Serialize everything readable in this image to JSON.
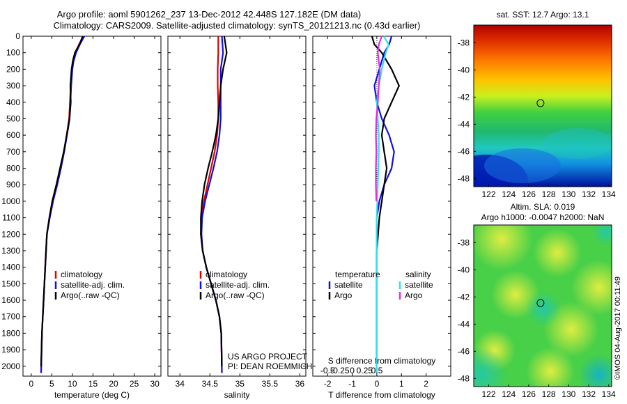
{
  "header": {
    "line1": "Argo profile: aoml 5901262_237 13-Dec-2012 42.448S 127.182E (DM data)",
    "line2": "Climatology: CARS2009. Satellite-adjusted climatology: synTS_20121213.nc (0.43d earlier)"
  },
  "footer": {
    "project": "US ARGO PROJECT",
    "pi": "PI: DEAN ROEMMICH",
    "credit": "©IMOS 04-Aug-2017 00:11:49"
  },
  "colors": {
    "climatology": "#e00000",
    "satellite": "#1010e0",
    "argo": "#000000",
    "satellite_salinity": "#30e0f0",
    "argo_salinity": "#e030e0"
  },
  "chart_data": [
    {
      "type": "line",
      "id": "temperature",
      "xlabel": "temperature (deg C)",
      "xlim": [
        -2,
        31.5
      ],
      "ylim": [
        2060,
        0
      ],
      "xticks": [
        0,
        5,
        10,
        15,
        20,
        25,
        30
      ],
      "yticks": [
        0,
        100,
        200,
        300,
        400,
        500,
        600,
        700,
        800,
        900,
        1000,
        1100,
        1200,
        1300,
        1400,
        1500,
        1600,
        1700,
        1800,
        1900,
        2000
      ],
      "legend": [
        "climatology",
        "satellite-adj. clim.",
        "Argo(..raw -QC)"
      ],
      "series": [
        {
          "name": "climatology",
          "color": "#e00000",
          "x": [
            12.8,
            11.6,
            10.8,
            10.2,
            9.9,
            9.6,
            9.4,
            9.2,
            8.9,
            8.6,
            8.0,
            7.2,
            6.3,
            5.3,
            4.5,
            3.8,
            3.4,
            3.0,
            2.6,
            2.4
          ],
          "y": [
            0,
            50,
            100,
            150,
            200,
            300,
            400,
            500,
            550,
            600,
            700,
            800,
            900,
            1000,
            1100,
            1200,
            1400,
            1600,
            1800,
            2040
          ]
        },
        {
          "name": "satellite-adj. clim.",
          "color": "#1010e0",
          "x": [
            12.9,
            11.8,
            10.9,
            10.3,
            10.0,
            9.7,
            9.5,
            9.3,
            9.0,
            8.7,
            8.0,
            7.2,
            6.3,
            5.3,
            4.5,
            3.8,
            3.4,
            3.0,
            2.6,
            2.4
          ],
          "y": [
            0,
            50,
            100,
            150,
            200,
            300,
            400,
            500,
            550,
            600,
            700,
            800,
            900,
            1000,
            1100,
            1200,
            1400,
            1600,
            1800,
            2040
          ]
        },
        {
          "name": "Argo(..raw -QC)",
          "color": "#000000",
          "x": [
            12.5,
            11.7,
            10.6,
            10.1,
            9.8,
            9.5,
            9.6,
            9.3,
            9.0,
            8.6,
            7.9,
            7.0,
            6.1,
            5.1,
            4.4,
            3.8,
            3.4,
            3.0,
            2.6,
            2.4
          ],
          "y": [
            0,
            50,
            100,
            150,
            200,
            300,
            400,
            500,
            550,
            600,
            700,
            800,
            900,
            1000,
            1100,
            1200,
            1400,
            1600,
            1800,
            2000
          ]
        }
      ]
    },
    {
      "type": "line",
      "id": "salinity",
      "xlabel": "salinity",
      "xlim": [
        33.8,
        36.1
      ],
      "ylim": [
        2060,
        0
      ],
      "xticks": [
        34,
        34.5,
        35,
        35.5,
        36
      ],
      "legend": [
        "climatology",
        "satellite-adj. clim.",
        "Argo(..raw -QC)"
      ],
      "series": [
        {
          "name": "climatology",
          "color": "#e00000",
          "x": [
            34.64,
            34.64,
            34.63,
            34.63,
            34.64,
            34.64,
            34.62,
            34.58,
            34.52,
            34.46,
            34.4,
            34.36,
            34.35,
            34.38,
            34.44,
            34.52,
            34.6,
            34.66,
            34.69,
            34.7
          ],
          "y": [
            0,
            100,
            200,
            300,
            400,
            500,
            600,
            700,
            800,
            900,
            1000,
            1100,
            1200,
            1300,
            1400,
            1500,
            1600,
            1700,
            1800,
            2040
          ]
        },
        {
          "name": "satellite-adj. clim.",
          "color": "#1010e0",
          "x": [
            34.7,
            34.72,
            34.68,
            34.68,
            34.68,
            34.68,
            34.66,
            34.62,
            34.56,
            34.49,
            34.42,
            34.37,
            34.36,
            34.38,
            34.44,
            34.52,
            34.6,
            34.66,
            34.69,
            34.7
          ],
          "y": [
            0,
            100,
            200,
            300,
            400,
            500,
            600,
            700,
            800,
            900,
            1000,
            1100,
            1200,
            1300,
            1400,
            1500,
            1600,
            1700,
            1800,
            2040
          ]
        },
        {
          "name": "Argo(..raw -QC)",
          "color": "#000000",
          "x": [
            34.74,
            34.78,
            34.72,
            34.68,
            34.66,
            34.64,
            34.6,
            34.54,
            34.47,
            34.41,
            34.37,
            34.35,
            34.35,
            34.38,
            34.44,
            34.52,
            34.6,
            34.66,
            34.69,
            34.7
          ],
          "y": [
            0,
            100,
            200,
            300,
            400,
            500,
            600,
            700,
            800,
            900,
            1000,
            1100,
            1200,
            1300,
            1400,
            1500,
            1600,
            1700,
            1800,
            2000
          ]
        }
      ]
    },
    {
      "type": "line",
      "id": "difference",
      "xlabel": "T difference from climatology",
      "xlabel_top": "S difference from climatology",
      "xlim": [
        -2.6,
        3.0
      ],
      "ylim": [
        2060,
        0
      ],
      "xticks_T": [
        -2,
        -1,
        0,
        1,
        2
      ],
      "xticks_S": [
        -0.5,
        -0.25,
        0,
        0.25,
        0.5
      ],
      "legend_temperature_title": "temperature",
      "legend_salinity_title": "salinity",
      "legend": [
        "satellite",
        "Argo",
        "satellite",
        "Argo"
      ],
      "series": [
        {
          "name": "satellite",
          "group": "temperature",
          "color": "#1010e0",
          "x": [
            0.6,
            0.5,
            0.3,
            0.1,
            -0.1,
            0.0,
            0.2,
            0.5,
            0.7,
            0.6,
            0.3,
            0.1,
            0.0,
            0.0,
            0.0,
            0.0
          ],
          "y": [
            0,
            50,
            100,
            200,
            300,
            400,
            500,
            600,
            700,
            800,
            900,
            1000,
            1100,
            1300,
            1600,
            2040
          ]
        },
        {
          "name": "Argo",
          "group": "temperature",
          "color": "#000000",
          "x": [
            -0.2,
            -0.1,
            0.2,
            0.6,
            0.9,
            0.6,
            0.3,
            0.2,
            0.3,
            0.4,
            0.3,
            0.2,
            0.1,
            0.0,
            0.0,
            0.0
          ],
          "y": [
            0,
            50,
            100,
            200,
            300,
            400,
            500,
            600,
            700,
            800,
            900,
            1000,
            1100,
            1300,
            1600,
            2040
          ]
        },
        {
          "name": "satellite",
          "group": "salinity",
          "color": "#30e0f0",
          "x": [
            0.14,
            0.24,
            0.18,
            0.1,
            0.04,
            0.0,
            0.02,
            0.04,
            0.04,
            0.03,
            0.02,
            0.01,
            0.0,
            0.0,
            0.0,
            0.0
          ],
          "y": [
            0,
            50,
            100,
            200,
            300,
            400,
            500,
            600,
            700,
            800,
            900,
            1000,
            1100,
            1300,
            1600,
            2040
          ]
        },
        {
          "name": "Argo",
          "group": "salinity",
          "color": "#e030e0",
          "x": [
            0.1,
            0.04,
            0.02,
            0.06,
            0.04,
            0.02,
            -0.01,
            -0.02,
            -0.01,
            -0.02,
            -0.02,
            -0.01
          ],
          "y": [
            0,
            50,
            100,
            200,
            300,
            400,
            500,
            600,
            700,
            800,
            900,
            1000
          ]
        }
      ]
    },
    {
      "type": "heatmap",
      "id": "sst_map",
      "title": "sat. SST: 12.7 Argo: 13.1",
      "xlim": [
        120.5,
        134.3
      ],
      "ylim": [
        -48.6,
        -36.7
      ],
      "xticks": [
        122,
        124,
        126,
        128,
        130,
        132,
        134
      ],
      "yticks": [
        -38,
        -40,
        -42,
        -44,
        -46,
        -48
      ],
      "marker": {
        "lon": 127.182,
        "lat": -42.448
      },
      "colorscale": "jet"
    },
    {
      "type": "heatmap",
      "id": "sla_map",
      "title": "Altim. SLA: 0.019",
      "subtitle": "Argo h1000: -0.0047 h2000: NaN",
      "xlim": [
        120.5,
        134.3
      ],
      "ylim": [
        -48.6,
        -36.7
      ],
      "xticks": [
        122,
        124,
        126,
        128,
        130,
        132,
        134
      ],
      "yticks": [
        -38,
        -40,
        -42,
        -44,
        -46,
        -48
      ],
      "marker": {
        "lon": 127.182,
        "lat": -42.448
      },
      "colorscale": "jet"
    }
  ]
}
